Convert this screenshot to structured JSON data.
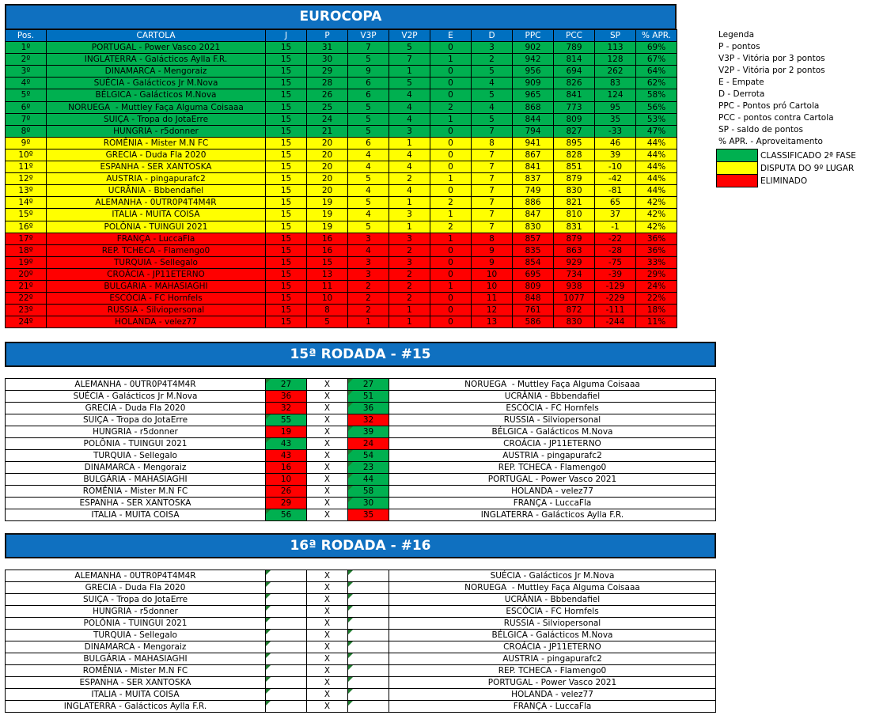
{
  "standings": {
    "title": "EUROCOPA",
    "columns": [
      "Pos.",
      "CARTOLA",
      "J",
      "P",
      "V3P",
      "V2P",
      "E",
      "D",
      "PPC",
      "PCC",
      "SP",
      "% APR."
    ],
    "rows": [
      [
        "1º",
        "PORTUGAL - Power Vasco 2021",
        15,
        31,
        7,
        5,
        0,
        3,
        902,
        789,
        113,
        "69%"
      ],
      [
        "2º",
        "INGLATERRA - Galácticos Aylla F.R.",
        15,
        30,
        5,
        7,
        1,
        2,
        942,
        814,
        128,
        "67%"
      ],
      [
        "3º",
        "DINAMARCA - Mengoraiz",
        15,
        29,
        9,
        1,
        0,
        5,
        956,
        694,
        262,
        "64%"
      ],
      [
        "4º",
        "SUÉCIA - Galácticos Jr M.Nova",
        15,
        28,
        6,
        5,
        0,
        4,
        909,
        826,
        83,
        "62%"
      ],
      [
        "5º",
        "BÉLGICA - Galácticos M.Nova",
        15,
        26,
        6,
        4,
        0,
        5,
        965,
        841,
        124,
        "58%"
      ],
      [
        "6º",
        "NORUEGA  - Muttley Faça Alguma Coisaaa",
        15,
        25,
        5,
        4,
        2,
        4,
        868,
        773,
        95,
        "56%"
      ],
      [
        "7º",
        "SUIÇA - Tropa do JotaErre",
        15,
        24,
        5,
        4,
        1,
        5,
        844,
        809,
        35,
        "53%"
      ],
      [
        "8º",
        "HUNGRIA - r5donner",
        15,
        21,
        5,
        3,
        0,
        7,
        794,
        827,
        -33,
        "47%"
      ],
      [
        "9º",
        "ROMÊNIA - Mister M.N FC",
        15,
        20,
        6,
        1,
        0,
        8,
        941,
        895,
        46,
        "44%"
      ],
      [
        "10º",
        "GRECIA - Duda Fla 2020",
        15,
        20,
        4,
        4,
        0,
        7,
        867,
        828,
        39,
        "44%"
      ],
      [
        "11º",
        "ESPANHA - SER XANTOSKA",
        15,
        20,
        4,
        4,
        0,
        7,
        841,
        851,
        -10,
        "44%"
      ],
      [
        "12º",
        "AUSTRIA - pingapurafc2",
        15,
        20,
        5,
        2,
        1,
        7,
        837,
        879,
        -42,
        "44%"
      ],
      [
        "13º",
        "UCRÂNIA - Bbbendafiel",
        15,
        20,
        4,
        4,
        0,
        7,
        749,
        830,
        -81,
        "44%"
      ],
      [
        "14º",
        "ALEMANHA - 0UTR0P4T4M4R",
        15,
        19,
        5,
        1,
        2,
        7,
        886,
        821,
        65,
        "42%"
      ],
      [
        "15º",
        "ITALIA - MUITA COISA",
        15,
        19,
        4,
        3,
        1,
        7,
        847,
        810,
        37,
        "42%"
      ],
      [
        "16º",
        "POLÔNIA - TUINGUI 2021",
        15,
        19,
        5,
        1,
        2,
        7,
        830,
        831,
        -1,
        "42%"
      ],
      [
        "17º",
        "FRANÇA - LuccaFla",
        15,
        16,
        3,
        3,
        1,
        8,
        857,
        879,
        -22,
        "36%"
      ],
      [
        "18º",
        "REP. TCHECA - Flamengo0",
        15,
        16,
        4,
        2,
        0,
        9,
        835,
        863,
        -28,
        "36%"
      ],
      [
        "19º",
        "TURQUIA - Sellegalo",
        15,
        15,
        3,
        3,
        0,
        9,
        854,
        929,
        -75,
        "33%"
      ],
      [
        "20º",
        "CROÁCIA - JP11ETERNO",
        15,
        13,
        3,
        2,
        0,
        10,
        695,
        734,
        -39,
        "29%"
      ],
      [
        "21º",
        "BULGÁRIA - MAHASIAGHI",
        15,
        11,
        2,
        2,
        1,
        10,
        809,
        938,
        -129,
        "24%"
      ],
      [
        "22º",
        "ESCÓCIA - FC Hornfels",
        15,
        10,
        2,
        2,
        0,
        11,
        848,
        1077,
        -229,
        "22%"
      ],
      [
        "23º",
        "RUSSIA - Silviopersonal",
        15,
        8,
        2,
        1,
        0,
        12,
        761,
        872,
        -111,
        "18%"
      ],
      [
        "24º",
        "HOLANDA - velez77",
        15,
        5,
        1,
        1,
        0,
        13,
        586,
        830,
        -244,
        "11%"
      ]
    ]
  },
  "legend": {
    "title": "Legenda",
    "items": [
      "P - pontos",
      "V3P - Vitória por 3 pontos",
      "V2P - Vitória por 2 pontos",
      "E - Empate",
      "D - Derrota",
      "PPC - Pontos pró Cartola",
      "PCC - pontos contra Cartola",
      "SP - saldo de pontos",
      "% APR. - Aproveitamento"
    ],
    "zones": [
      "CLASSIFICADO 2ª FASE",
      "DISPUTA DO 9º LUGAR",
      "ELIMINADO"
    ]
  },
  "rounds": [
    {
      "title": "15ª RODADA - #15",
      "separator": "X",
      "matches": [
        {
          "home": "ALEMANHA - 0UTR0P4T4M4R",
          "home_score": 27,
          "away_score": 27,
          "away": "NORUEGA  - Muttley Faça Alguma Coisaaa"
        },
        {
          "home": "SUÉCIA - Galácticos Jr M.Nova",
          "home_score": 36,
          "away_score": 51,
          "away": "UCRÂNIA - Bbbendafiel"
        },
        {
          "home": "GRECIA - Duda Fla 2020",
          "home_score": 32,
          "away_score": 36,
          "away": "ESCÓCIA - FC Hornfels"
        },
        {
          "home": "SUIÇA - Tropa do JotaErre",
          "home_score": 55,
          "away_score": 32,
          "away": "RUSSIA - Silviopersonal"
        },
        {
          "home": "HUNGRIA - r5donner",
          "home_score": 19,
          "away_score": 39,
          "away": "BÉLGICA - Galácticos M.Nova"
        },
        {
          "home": "POLÔNIA - TUINGUI 2021",
          "home_score": 43,
          "away_score": 24,
          "away": "CROÁCIA - JP11ETERNO"
        },
        {
          "home": "TURQUIA - Sellegalo",
          "home_score": 43,
          "away_score": 54,
          "away": "AUSTRIA - pingapurafc2"
        },
        {
          "home": "DINAMARCA - Mengoraiz",
          "home_score": 16,
          "away_score": 23,
          "away": "REP. TCHECA - Flamengo0"
        },
        {
          "home": "BULGÁRIA - MAHASIAGHI",
          "home_score": 10,
          "away_score": 44,
          "away": "PORTUGAL - Power Vasco 2021"
        },
        {
          "home": "ROMÊNIA - Mister M.N FC",
          "home_score": 26,
          "away_score": 58,
          "away": "HOLANDA - velez77"
        },
        {
          "home": "ESPANHA - SER XANTOSKA",
          "home_score": 29,
          "away_score": 30,
          "away": "FRANÇA - LuccaFla"
        },
        {
          "home": "ITALIA - MUITA COISA",
          "home_score": 56,
          "away_score": 35,
          "away": "INGLATERRA - Galácticos Aylla F.R."
        }
      ]
    },
    {
      "title": "16ª RODADA - #16",
      "separator": "X",
      "matches": [
        {
          "home": "ALEMANHA - 0UTR0P4T4M4R",
          "away": "SUÉCIA - Galácticos Jr M.Nova"
        },
        {
          "home": "GRECIA - Duda Fla 2020",
          "away": "NORUEGA  - Muttley Faça Alguma Coisaaa"
        },
        {
          "home": "SUIÇA - Tropa do JotaErre",
          "away": "UCRÂNIA - Bbbendafiel"
        },
        {
          "home": "HUNGRIA - r5donner",
          "away": "ESCÓCIA - FC Hornfels"
        },
        {
          "home": "POLÔNIA - TUINGUI 2021",
          "away": "RUSSIA - Silviopersonal"
        },
        {
          "home": "TURQUIA - Sellegalo",
          "away": "BÉLGICA - Galácticos M.Nova"
        },
        {
          "home": "DINAMARCA - Mengoraiz",
          "away": "CROÁCIA - JP11ETERNO"
        },
        {
          "home": "BULGÁRIA - MAHASIAGHI",
          "away": "AUSTRIA - pingapurafc2"
        },
        {
          "home": "ROMÊNIA - Mister M.N FC",
          "away": "REP. TCHECA - Flamengo0"
        },
        {
          "home": "ESPANHA - SER XANTOSKA",
          "away": "PORTUGAL - Power Vasco 2021"
        },
        {
          "home": "ITALIA - MUITA COISA",
          "away": "HOLANDA - velez77"
        },
        {
          "home": "INGLATERRA - Galácticos Aylla F.R.",
          "away": "FRANÇA - LuccaFla"
        }
      ]
    }
  ]
}
